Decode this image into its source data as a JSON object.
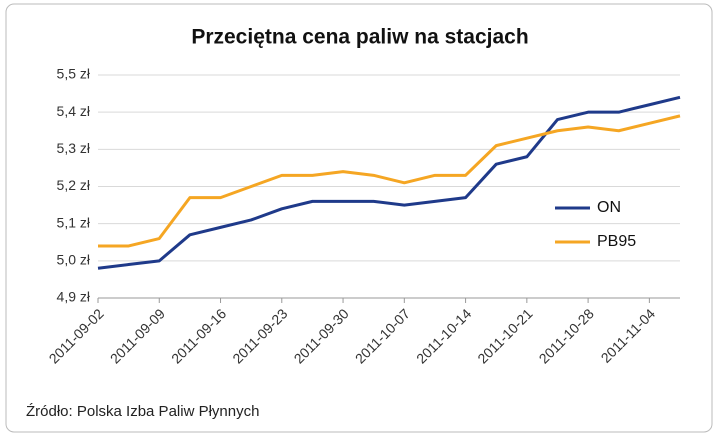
{
  "chart_data": {
    "type": "line",
    "title": "Przeciętna cena paliw na stacjach",
    "categories": [
      "2011-09-02",
      null,
      "2011-09-09",
      null,
      "2011-09-16",
      null,
      "2011-09-23",
      null,
      "2011-09-30",
      null,
      "2011-10-07",
      null,
      "2011-10-14",
      null,
      "2011-10-21",
      null,
      "2011-10-28",
      null,
      "2011-11-04",
      null
    ],
    "series": [
      {
        "name": "ON",
        "color": "#1f3a8a",
        "values": [
          4.98,
          4.99,
          5.0,
          5.07,
          5.09,
          5.11,
          5.14,
          5.16,
          5.16,
          5.16,
          5.15,
          5.16,
          5.17,
          5.26,
          5.28,
          5.38,
          5.4,
          5.4,
          5.42,
          5.44
        ]
      },
      {
        "name": "PB95",
        "color": "#f5a623",
        "values": [
          5.04,
          5.04,
          5.06,
          5.17,
          5.17,
          5.2,
          5.23,
          5.23,
          5.24,
          5.23,
          5.21,
          5.23,
          5.23,
          5.31,
          5.33,
          5.35,
          5.36,
          5.35,
          5.37,
          5.39
        ]
      }
    ],
    "ylim": [
      4.9,
      5.5
    ],
    "yticks": [
      {
        "value": 4.9,
        "label": "4,9 zł"
      },
      {
        "value": 5.0,
        "label": "5,0 zł"
      },
      {
        "value": 5.1,
        "label": "5,1 zł"
      },
      {
        "value": 5.2,
        "label": "5,2 zł"
      },
      {
        "value": 5.3,
        "label": "5,3 zł"
      },
      {
        "value": 5.4,
        "label": "5,4 zł"
      },
      {
        "value": 5.5,
        "label": "5,5 zł"
      }
    ],
    "grid": true,
    "legend": "right",
    "source": "Źródło: Polska Izba Paliw Płynnych"
  }
}
